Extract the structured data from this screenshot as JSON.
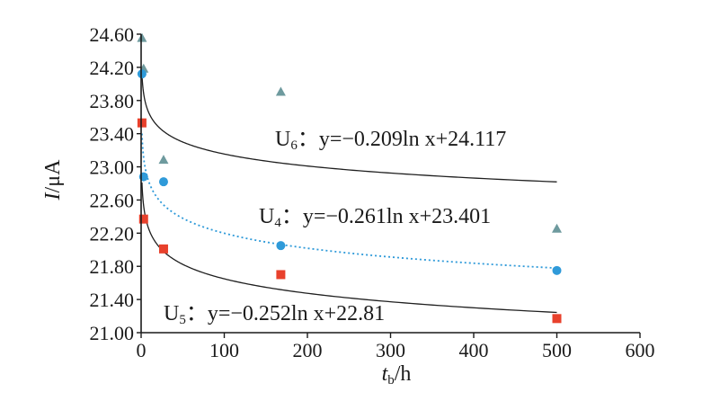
{
  "chart_data": {
    "type": "scatter",
    "xlabel": "t_b/h",
    "xlabel_main": "t",
    "xlabel_sub": "b",
    "xlabel_unit": "/h",
    "ylabel": "I/μA",
    "ylabel_main": "I",
    "ylabel_unit": "/μA",
    "xlim": [
      0,
      600
    ],
    "ylim": [
      21.0,
      24.6
    ],
    "xticks": [
      0,
      100,
      200,
      300,
      400,
      500,
      600
    ],
    "xtick_labels": [
      "0",
      "100",
      "200",
      "300",
      "400",
      "500",
      "600"
    ],
    "yticks": [
      21.0,
      21.4,
      21.8,
      22.2,
      22.6,
      23.0,
      23.4,
      23.8,
      24.2,
      24.6
    ],
    "ytick_labels": [
      "21.00",
      "21.40",
      "21.80",
      "22.20",
      "22.60",
      "23.00",
      "23.40",
      "23.80",
      "24.20",
      "24.60"
    ],
    "grid": false,
    "series": [
      {
        "name": "U6",
        "marker": "triangle",
        "color": "#6e9a9e",
        "points": [
          {
            "x": 1,
            "y": 24.55
          },
          {
            "x": 3,
            "y": 24.18
          },
          {
            "x": 27,
            "y": 23.08
          },
          {
            "x": 168,
            "y": 23.9
          },
          {
            "x": 500,
            "y": 22.25
          }
        ],
        "fit": {
          "a": -0.209,
          "b": 24.117,
          "style": "solid",
          "color": "#1f1f1f"
        },
        "equation": {
          "series": "U",
          "index": "6",
          "colon": "：",
          "text": "y=−0.209ln x+24.117"
        }
      },
      {
        "name": "U4",
        "marker": "circle",
        "color": "#2f9ad9",
        "points": [
          {
            "x": 1,
            "y": 24.12
          },
          {
            "x": 3,
            "y": 22.88
          },
          {
            "x": 27,
            "y": 22.82
          },
          {
            "x": 168,
            "y": 22.05
          },
          {
            "x": 500,
            "y": 21.75
          }
        ],
        "fit": {
          "a": -0.261,
          "b": 23.401,
          "style": "dotted",
          "color": "#2f9ad9"
        },
        "equation": {
          "series": "U",
          "index": "4",
          "colon": "：",
          "text": "y=−0.261ln x+23.401"
        }
      },
      {
        "name": "U5",
        "marker": "square",
        "color": "#e8412c",
        "points": [
          {
            "x": 1,
            "y": 23.53
          },
          {
            "x": 3,
            "y": 22.37
          },
          {
            "x": 27,
            "y": 22.01
          },
          {
            "x": 168,
            "y": 21.7
          },
          {
            "x": 500,
            "y": 21.17
          }
        ],
        "fit": {
          "a": -0.252,
          "b": 22.81,
          "style": "solid",
          "color": "#1f1f1f"
        },
        "equation": {
          "series": "U",
          "index": "5",
          "colon": "：",
          "text": "y=−0.252ln x+22.81"
        }
      }
    ]
  }
}
